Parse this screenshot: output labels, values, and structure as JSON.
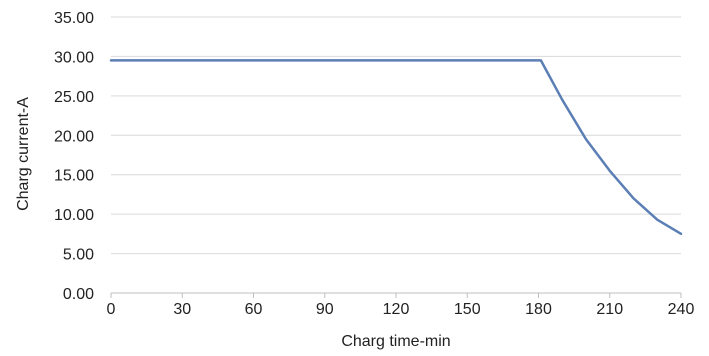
{
  "chart_data": {
    "type": "line",
    "title": "",
    "xlabel": "Charg time-min",
    "ylabel": "Charg current-A",
    "xlim": [
      0,
      240
    ],
    "ylim": [
      0,
      35
    ],
    "x_ticks": [
      0,
      30,
      60,
      90,
      120,
      150,
      180,
      210,
      240
    ],
    "x_tick_labels": [
      "0",
      "30",
      "60",
      "90",
      "120",
      "150",
      "180",
      "210",
      "240"
    ],
    "y_ticks": [
      0,
      5,
      10,
      15,
      20,
      25,
      30,
      35
    ],
    "y_tick_labels": [
      "0.00",
      "5.00",
      "10.00",
      "15.00",
      "20.00",
      "25.00",
      "30.00",
      "35.00"
    ],
    "grid": true,
    "legend": "none",
    "series": [
      {
        "color": "#5b7fb5",
        "points": [
          [
            0,
            29.5
          ],
          [
            30,
            29.5
          ],
          [
            60,
            29.5
          ],
          [
            90,
            29.5
          ],
          [
            120,
            29.5
          ],
          [
            150,
            29.5
          ],
          [
            180,
            29.5
          ],
          [
            181,
            29.5
          ],
          [
            190,
            24.5
          ],
          [
            200,
            19.5
          ],
          [
            210,
            15.5
          ],
          [
            220,
            12.0
          ],
          [
            230,
            9.3
          ],
          [
            240,
            7.5
          ]
        ]
      }
    ]
  }
}
